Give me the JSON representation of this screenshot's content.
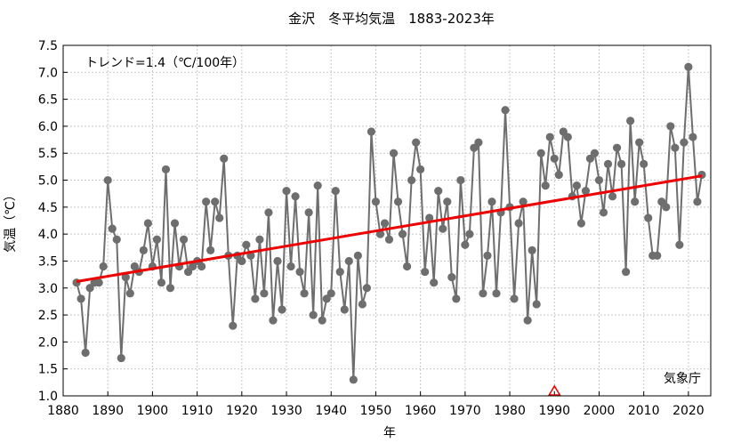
{
  "chart_data": {
    "type": "line",
    "title": "金沢　冬平均気温　1883-2023年",
    "xlabel": "年",
    "ylabel": "気温（℃）",
    "trend_label": "トレンド=1.4（℃/100年）",
    "credit": "気象庁",
    "xlim": [
      1880,
      2025
    ],
    "ylim": [
      1.0,
      7.5
    ],
    "grid": true,
    "xticks": [
      1880,
      1890,
      1900,
      1910,
      1920,
      1930,
      1940,
      1950,
      1960,
      1970,
      1980,
      1990,
      2000,
      2010,
      2020
    ],
    "yticks": [
      1.0,
      1.5,
      2.0,
      2.5,
      3.0,
      3.5,
      4.0,
      4.5,
      5.0,
      5.5,
      6.0,
      6.5,
      7.0,
      7.5
    ],
    "colors": {
      "series": "#6e6e6e",
      "trend": "#ee0000",
      "marker": "#ee0000",
      "grid": "#c8c8c8"
    },
    "series": [
      {
        "x": [
          1883,
          1884,
          1885,
          1886,
          1887,
          1888,
          1889,
          1890,
          1891,
          1892,
          1893,
          1894,
          1895,
          1896,
          1897,
          1898,
          1899,
          1900,
          1901,
          1902,
          1903,
          1904,
          1905,
          1906,
          1907,
          1908,
          1909,
          1910,
          1911,
          1912,
          1913,
          1914,
          1915,
          1916,
          1917,
          1918,
          1919,
          1920,
          1921,
          1922,
          1923,
          1924,
          1925,
          1926,
          1927,
          1928,
          1929,
          1930,
          1931,
          1932,
          1933,
          1934,
          1935,
          1936,
          1937,
          1938,
          1939,
          1940,
          1941,
          1942,
          1943,
          1944,
          1945,
          1946,
          1947,
          1948,
          1949,
          1950,
          1951,
          1952,
          1953,
          1954,
          1955,
          1956,
          1957,
          1958,
          1959,
          1960,
          1961,
          1962,
          1963,
          1964,
          1965,
          1966,
          1967,
          1968,
          1969,
          1970,
          1971,
          1972,
          1973,
          1974,
          1975,
          1976,
          1977,
          1978,
          1979,
          1980,
          1981,
          1982,
          1983,
          1984,
          1985,
          1986,
          1987,
          1988,
          1989,
          1990,
          1991,
          1992,
          1993,
          1994,
          1995,
          1996,
          1997,
          1998,
          1999,
          2000,
          2001,
          2002,
          2003,
          2004,
          2005,
          2006,
          2007,
          2008,
          2009,
          2010,
          2011,
          2012,
          2013,
          2014,
          2015,
          2016,
          2017,
          2018,
          2019,
          2020,
          2021,
          2022,
          2023
        ],
        "values": [
          3.1,
          2.8,
          1.8,
          3.0,
          3.1,
          3.1,
          3.4,
          5.0,
          4.1,
          3.9,
          1.7,
          3.2,
          2.9,
          3.4,
          3.3,
          3.7,
          4.2,
          3.4,
          3.9,
          3.1,
          5.2,
          3.0,
          4.2,
          3.4,
          3.9,
          3.3,
          3.4,
          3.5,
          3.4,
          4.6,
          3.7,
          4.6,
          4.3,
          5.4,
          3.6,
          2.3,
          3.6,
          3.5,
          3.8,
          3.6,
          2.8,
          3.9,
          2.9,
          4.4,
          2.4,
          3.5,
          2.6,
          4.8,
          3.4,
          4.7,
          3.3,
          2.9,
          4.4,
          2.5,
          4.9,
          2.4,
          2.8,
          2.9,
          4.8,
          3.3,
          2.6,
          3.5,
          1.3,
          3.6,
          2.7,
          3.0,
          5.9,
          4.6,
          4.0,
          4.2,
          3.9,
          5.5,
          4.6,
          4.0,
          3.4,
          5.0,
          5.7,
          5.2,
          3.3,
          4.3,
          3.1,
          4.8,
          4.1,
          4.6,
          3.2,
          2.8,
          5.0,
          3.8,
          4.0,
          5.6,
          5.7,
          2.9,
          3.6,
          4.6,
          2.9,
          4.4,
          6.3,
          4.5,
          2.8,
          4.2,
          4.6,
          2.4,
          3.7,
          2.7,
          5.5,
          4.9,
          5.8,
          5.4,
          5.1,
          5.9,
          5.8,
          4.7,
          4.9,
          4.2,
          4.8,
          5.4,
          5.5,
          5.0,
          4.4,
          5.3,
          4.7,
          5.6,
          5.3,
          3.3,
          6.1,
          4.6,
          5.7,
          5.3,
          4.3,
          3.6,
          3.6,
          4.6,
          4.5,
          6.0,
          5.6,
          3.8,
          5.7,
          7.1,
          5.8,
          4.6,
          5.1
        ]
      }
    ],
    "trend": {
      "x": [
        1883,
        2023
      ],
      "y": [
        3.12,
        5.08
      ]
    },
    "marker": {
      "x": 1990,
      "y": 1.0,
      "shape": "triangle"
    }
  }
}
